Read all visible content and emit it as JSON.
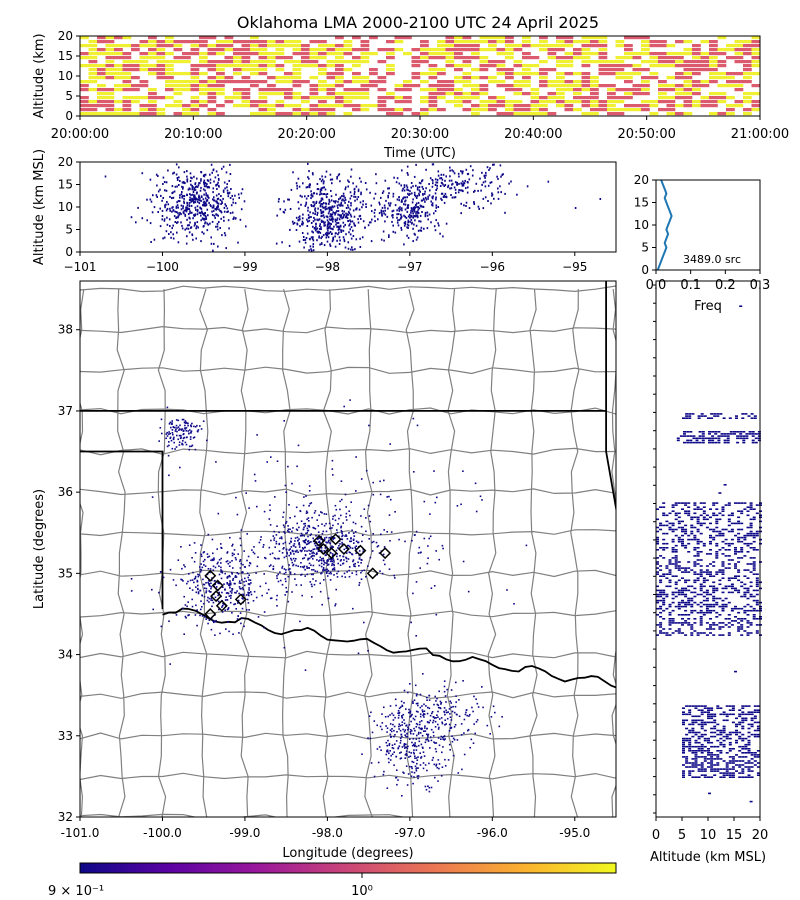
{
  "title": "Oklahoma LMA 2000-2100 UTC 24 April 2025",
  "colors": {
    "low": "#dc5a6e",
    "high": "#f0f032",
    "source": "#0d0887",
    "profile": "#1f77b4",
    "border": "#000000",
    "county": "#808080",
    "colorbar": [
      "#0d0887",
      "#5b02a3",
      "#9a179b",
      "#cb4678",
      "#eb7852",
      "#fbb32f",
      "#f0f921"
    ]
  },
  "chart_data": [
    {
      "id": "time_height",
      "type": "heatmap",
      "title": "",
      "xlabel": "Time (UTC)",
      "ylabel": "Altitude (km)",
      "xticks": [
        "20:00:00",
        "20:10:00",
        "20:20:00",
        "20:30:00",
        "20:40:00",
        "20:50:00",
        "21:00:00"
      ],
      "xlim": [
        "20:00:00",
        "21:00:00"
      ],
      "ylim": [
        0,
        20
      ],
      "yticks": [
        "0",
        "5",
        "10",
        "15",
        "20"
      ],
      "colors": [
        "low",
        "high"
      ],
      "active_periods": [
        {
          "start_min": 0,
          "end_min": 25.5,
          "density": "high"
        },
        {
          "start_min": 25.5,
          "end_min": 29.8,
          "density": "low"
        },
        {
          "start_min": 29.8,
          "end_min": 60,
          "density": "high"
        }
      ]
    },
    {
      "id": "lon_alt",
      "type": "scatter",
      "xlabel": "",
      "ylabel": "Altitude (km MSL)",
      "xticks": [
        "−101",
        "−100",
        "−99",
        "−98",
        "−97",
        "−96",
        "−95"
      ],
      "xlim": [
        -101.0,
        -94.5
      ],
      "ylim": [
        0,
        20
      ],
      "yticks": [
        "0",
        "5",
        "10",
        "15",
        "20"
      ],
      "clusters": [
        {
          "lon_center": -99.6,
          "lon_spread": 0.25,
          "alt_center": 11,
          "alt_spread": 4,
          "weight": 0.34
        },
        {
          "lon_center": -98.0,
          "lon_spread": 0.25,
          "alt_center": 8,
          "alt_spread": 4.5,
          "weight": 0.36
        },
        {
          "lon_center": -97.0,
          "lon_spread": 0.2,
          "alt_center": 10,
          "alt_spread": 3.5,
          "weight": 0.18
        },
        {
          "lon_center": -96.4,
          "lon_spread": 0.3,
          "alt_center": 15,
          "alt_spread": 2.5,
          "weight": 0.12
        }
      ]
    },
    {
      "id": "alt_histogram",
      "type": "line",
      "xlabel": "Freq",
      "xlim": [
        0,
        0.3
      ],
      "ylim": [
        0,
        20
      ],
      "xticks": [
        "0.0",
        "0.1",
        "0.2",
        "0.3"
      ],
      "yticks": [
        "0",
        "5",
        "10",
        "15",
        "20"
      ],
      "annotation": "3489.0 src",
      "freq": [
        0.005,
        0.01,
        0.015,
        0.02,
        0.025,
        0.03,
        0.025,
        0.03,
        0.035,
        0.03,
        0.035,
        0.04,
        0.045,
        0.04,
        0.035,
        0.03,
        0.025,
        0.03,
        0.025,
        0.02,
        0.015
      ],
      "alt": [
        0,
        1,
        2,
        3,
        4,
        5,
        6,
        7,
        8,
        9,
        10,
        11,
        12,
        13,
        14,
        15,
        16,
        17,
        18,
        19,
        20
      ]
    },
    {
      "id": "plan_view",
      "type": "scatter",
      "xlabel": "Longitude (degrees)",
      "ylabel": "Latitude (degrees)",
      "xlim": [
        -101.0,
        -94.5
      ],
      "ylim": [
        32.0,
        38.6
      ],
      "xticks": [
        "-101.0",
        "-100.0",
        "-99.0",
        "-98.0",
        "-97.0",
        "-96.0",
        "-95.0"
      ],
      "yticks": [
        "32",
        "33",
        "34",
        "35",
        "36",
        "37",
        "38"
      ],
      "clusters": [
        {
          "lon": -98.1,
          "lat": 35.3,
          "slon": 0.3,
          "slat": 0.22,
          "weight": 0.3
        },
        {
          "lon": -99.3,
          "lat": 34.85,
          "slon": 0.3,
          "slat": 0.25,
          "weight": 0.22
        },
        {
          "lon": -97.9,
          "lat": 35.5,
          "slon": 0.9,
          "slat": 0.6,
          "weight": 0.13
        },
        {
          "lon": -96.95,
          "lat": 32.95,
          "slon": 0.25,
          "slat": 0.25,
          "weight": 0.2
        },
        {
          "lon": -96.6,
          "lat": 33.3,
          "slon": 0.3,
          "slat": 0.2,
          "weight": 0.08
        },
        {
          "lon": -99.8,
          "lat": 36.75,
          "slon": 0.12,
          "slat": 0.1,
          "weight": 0.07
        }
      ],
      "stations": [
        [
          -99.42,
          34.97
        ],
        [
          -99.33,
          34.85
        ],
        [
          -99.35,
          34.72
        ],
        [
          -99.28,
          34.6
        ],
        [
          -99.05,
          34.68
        ],
        [
          -99.42,
          34.5
        ],
        [
          -98.1,
          35.4
        ],
        [
          -97.95,
          35.25
        ],
        [
          -97.8,
          35.3
        ],
        [
          -97.9,
          35.42
        ],
        [
          -97.6,
          35.28
        ],
        [
          -97.45,
          35.0
        ],
        [
          -97.3,
          35.25
        ],
        [
          -98.05,
          35.3
        ]
      ]
    },
    {
      "id": "alt_lat",
      "type": "scatter",
      "xlabel": "Altitude (km MSL)",
      "xlim": [
        0,
        20
      ],
      "ylim": [
        32.0,
        38.6
      ],
      "xticks": [
        "0",
        "5",
        "10",
        "15",
        "20"
      ],
      "bands": [
        {
          "lat_min": 36.92,
          "lat_max": 37.0,
          "alt_min": 5,
          "alt_max": 20,
          "density": 0.5
        },
        {
          "lat_min": 36.62,
          "lat_max": 36.78,
          "alt_min": 4,
          "alt_max": 20,
          "density": 0.6
        },
        {
          "lat_min": 34.25,
          "lat_max": 35.9,
          "alt_min": 0,
          "alt_max": 20,
          "density": 0.35
        },
        {
          "lat_min": 32.5,
          "lat_max": 33.4,
          "alt_min": 5,
          "alt_max": 20,
          "density": 0.45
        }
      ]
    },
    {
      "id": "colorbar",
      "type": "heatmap",
      "ticks": [
        "9 × 10⁻¹",
        "10⁰"
      ]
    }
  ]
}
